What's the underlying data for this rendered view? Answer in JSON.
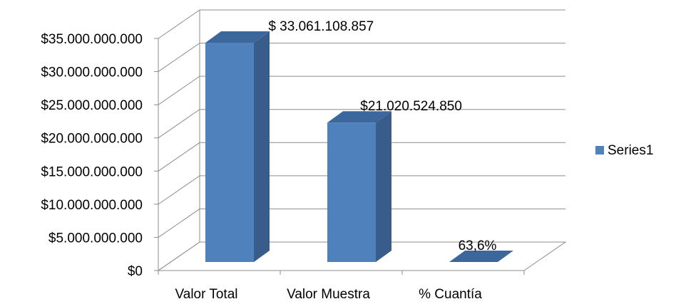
{
  "chart_data": {
    "type": "bar3d",
    "categories": [
      "Valor Total",
      "Valor Muestra",
      "%  Cuantía"
    ],
    "series": [
      {
        "name": "Series1",
        "color": "#4f81bd",
        "values": [
          33061108857,
          21020524850,
          63.6
        ],
        "value_labels": [
          "$ 33.061.108.857",
          "$21.020.524.850",
          "63,6%"
        ]
      }
    ],
    "ylim": [
      0,
      35000000000
    ],
    "yticks": [
      {
        "value": 0,
        "label": "$0"
      },
      {
        "value": 5000000000,
        "label": "$5.000.000.000"
      },
      {
        "value": 10000000000,
        "label": "$10.000.000.000"
      },
      {
        "value": 15000000000,
        "label": "$15.000.000.000"
      },
      {
        "value": 20000000000,
        "label": "$20.000.000.000"
      },
      {
        "value": 25000000000,
        "label": "$25.000.000.000"
      },
      {
        "value": 30000000000,
        "label": "$30.000.000.000"
      },
      {
        "value": 35000000000,
        "label": "$35.000.000.000"
      }
    ],
    "grid": true,
    "legend": "right"
  }
}
